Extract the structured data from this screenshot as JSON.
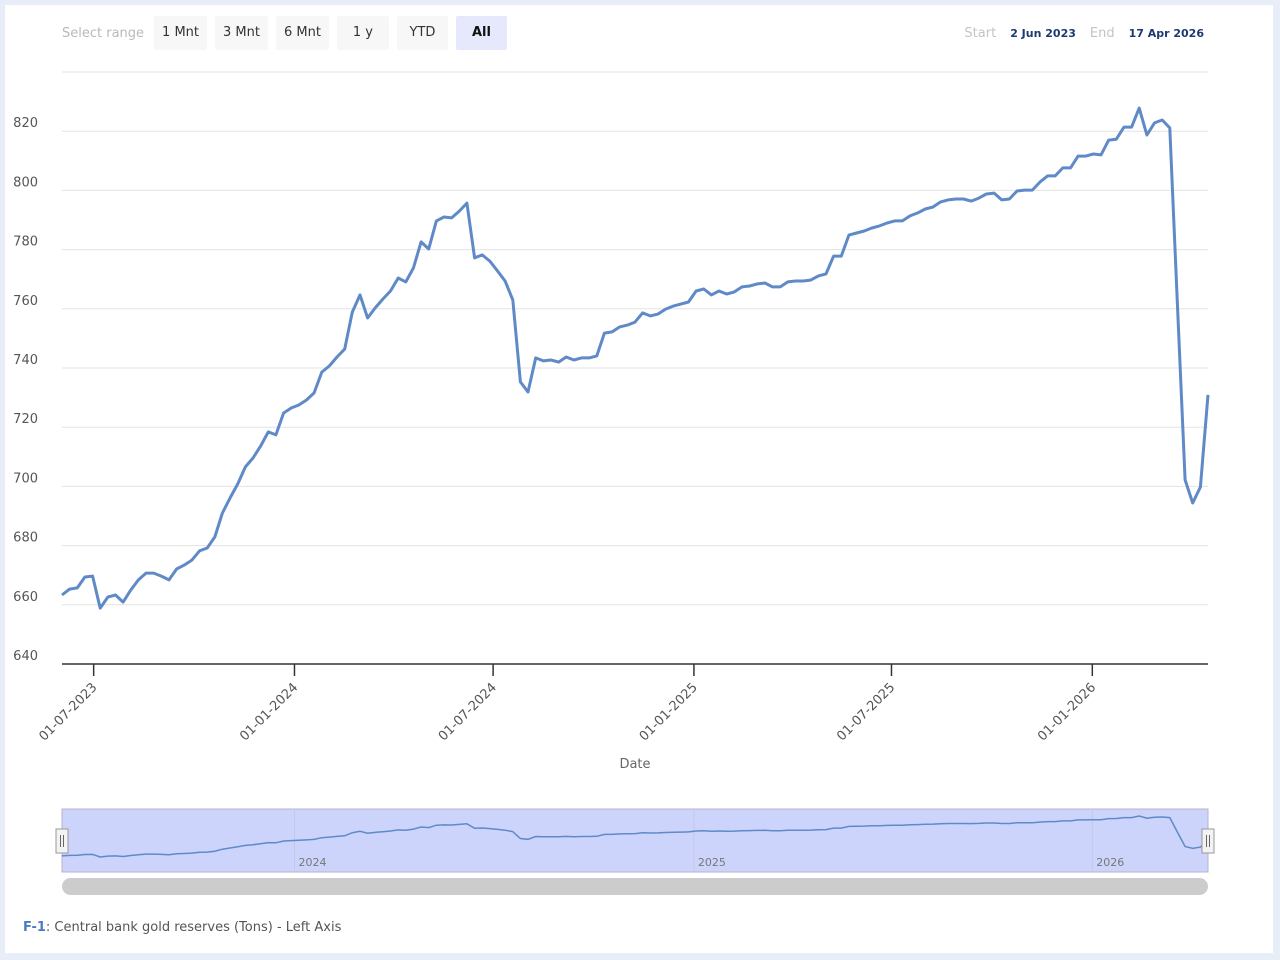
{
  "range_selector": {
    "label": "Select range",
    "buttons": [
      "1 Mnt",
      "3 Mnt",
      "6 Mnt",
      "1 y",
      "YTD",
      "All"
    ],
    "selected": "All"
  },
  "date_range": {
    "start_label": "Start",
    "start": "2 Jun 2023",
    "end_label": "End",
    "end": "17 Apr 2026"
  },
  "legend": {
    "id": "F-1",
    "text": ": Central bank gold reserves (Tons) - Left Axis"
  },
  "colors": {
    "line": "#5f8ac7",
    "navigator_fill": "#cdd4fb",
    "accent": "#1c3a70"
  },
  "chart_data": {
    "type": "line",
    "xlabel": "Date",
    "ylabel": "",
    "ylim": [
      640,
      840
    ],
    "yticks": [
      640,
      660,
      680,
      700,
      720,
      740,
      760,
      780,
      800,
      820
    ],
    "xticks": [
      "2023-07-01",
      "2024-01-01",
      "2024-07-01",
      "2025-01-01",
      "2025-07-01",
      "2026-01-01"
    ],
    "xtick_labels": [
      "01-07-2023",
      "01-01-2024",
      "01-07-2024",
      "01-01-2025",
      "01-07-2025",
      "01-01-2026"
    ],
    "xlim": [
      "2023-06-02",
      "2026-04-17"
    ],
    "grid": true,
    "navigator": {
      "ticks": [
        "2024-01-01",
        "2025-01-01",
        "2026-01-01"
      ],
      "labels": [
        "2024",
        "2025",
        "2026"
      ]
    },
    "series": [
      {
        "name": "Central bank gold reserves (Tons)",
        "x": [
          "2023-06-02",
          "2023-06-09",
          "2023-06-16",
          "2023-06-23",
          "2023-06-30",
          "2023-07-07",
          "2023-07-14",
          "2023-07-21",
          "2023-07-28",
          "2023-08-04",
          "2023-08-11",
          "2023-08-18",
          "2023-08-25",
          "2023-09-01",
          "2023-09-08",
          "2023-09-15",
          "2023-09-22",
          "2023-09-29",
          "2023-10-06",
          "2023-10-13",
          "2023-10-20",
          "2023-10-27",
          "2023-11-03",
          "2023-11-10",
          "2023-11-17",
          "2023-11-24",
          "2023-12-01",
          "2023-12-08",
          "2023-12-15",
          "2023-12-22",
          "2023-12-29",
          "2024-01-05",
          "2024-01-12",
          "2024-01-19",
          "2024-01-26",
          "2024-02-02",
          "2024-02-09",
          "2024-02-16",
          "2024-02-23",
          "2024-03-01",
          "2024-03-08",
          "2024-03-15",
          "2024-03-22",
          "2024-03-29",
          "2024-04-05",
          "2024-04-12",
          "2024-04-19",
          "2024-04-26",
          "2024-05-03",
          "2024-05-10",
          "2024-05-17",
          "2024-05-24",
          "2024-05-31",
          "2024-06-07",
          "2024-06-14",
          "2024-06-21",
          "2024-06-28",
          "2024-07-05",
          "2024-07-12",
          "2024-07-19",
          "2024-07-26",
          "2024-08-02",
          "2024-08-09",
          "2024-08-16",
          "2024-08-23",
          "2024-08-30",
          "2024-09-06",
          "2024-09-13",
          "2024-09-20",
          "2024-09-27",
          "2024-10-04",
          "2024-10-11",
          "2024-10-18",
          "2024-10-25",
          "2024-11-01",
          "2024-11-08",
          "2024-11-15",
          "2024-11-22",
          "2024-11-29",
          "2024-12-06",
          "2024-12-13",
          "2024-12-20",
          "2024-12-27",
          "2025-01-03",
          "2025-01-10",
          "2025-01-17",
          "2025-01-24",
          "2025-01-31",
          "2025-02-07",
          "2025-02-14",
          "2025-02-21",
          "2025-02-28",
          "2025-03-07",
          "2025-03-14",
          "2025-03-21",
          "2025-03-28",
          "2025-04-04",
          "2025-04-11",
          "2025-04-18",
          "2025-04-25",
          "2025-05-02",
          "2025-05-09",
          "2025-05-16",
          "2025-05-23",
          "2025-05-30",
          "2025-06-06",
          "2025-06-13",
          "2025-06-20",
          "2025-06-27",
          "2025-07-04",
          "2025-07-11",
          "2025-07-18",
          "2025-07-25",
          "2025-08-01",
          "2025-08-08",
          "2025-08-15",
          "2025-08-22",
          "2025-08-29",
          "2025-09-05",
          "2025-09-12",
          "2025-09-19",
          "2025-09-26",
          "2025-10-03",
          "2025-10-10",
          "2025-10-17",
          "2025-10-24",
          "2025-10-31",
          "2025-11-07",
          "2025-11-14",
          "2025-11-21",
          "2025-11-28",
          "2025-12-05",
          "2025-12-12",
          "2025-12-19",
          "2025-12-26",
          "2026-01-02",
          "2026-01-09",
          "2026-01-16",
          "2026-01-23",
          "2026-01-30",
          "2026-02-06",
          "2026-02-13",
          "2026-02-20",
          "2026-02-27",
          "2026-03-06",
          "2026-03-13",
          "2026-03-20",
          "2026-03-27",
          "2026-04-03",
          "2026-04-10",
          "2026-04-17"
        ],
        "y": [
          663.3,
          665.3,
          665.7,
          669.4,
          669.7,
          658.9,
          662.6,
          663.3,
          660.9,
          665.0,
          668.4,
          670.7,
          670.7,
          669.7,
          668.4,
          672.1,
          673.4,
          675.1,
          678.2,
          679.2,
          682.9,
          691.0,
          696.1,
          700.8,
          706.6,
          709.6,
          713.6,
          718.4,
          717.4,
          724.8,
          726.5,
          727.5,
          729.2,
          731.6,
          738.6,
          740.7,
          743.7,
          746.4,
          758.9,
          764.7,
          756.9,
          760.3,
          763.3,
          766.0,
          770.4,
          769.1,
          773.8,
          782.6,
          780.2,
          789.7,
          791.0,
          790.7,
          793.0,
          795.7,
          777.2,
          778.2,
          776.1,
          772.8,
          769.4,
          763.0,
          735.3,
          731.9,
          743.4,
          742.4,
          742.7,
          742.0,
          743.7,
          742.7,
          743.4,
          743.4,
          744.1,
          751.8,
          752.2,
          753.9,
          754.5,
          755.5,
          758.6,
          757.6,
          758.2,
          759.9,
          760.9,
          761.6,
          762.3,
          766.0,
          766.7,
          764.7,
          766.0,
          765.0,
          765.7,
          767.4,
          767.7,
          768.4,
          768.7,
          767.4,
          767.4,
          769.1,
          769.4,
          769.4,
          769.7,
          771.1,
          771.8,
          777.8,
          777.8,
          784.9,
          785.6,
          786.3,
          787.3,
          788.0,
          789.0,
          789.7,
          789.7,
          791.4,
          792.4,
          793.7,
          794.4,
          796.1,
          796.8,
          797.1,
          797.1,
          796.4,
          797.4,
          798.8,
          799.1,
          796.8,
          797.1,
          799.8,
          800.1,
          800.1,
          802.8,
          804.9,
          804.9,
          807.6,
          807.6,
          811.6,
          811.6,
          812.3,
          812.0,
          817.0,
          817.3,
          821.4,
          821.4,
          827.8,
          818.7,
          822.8,
          823.8,
          821.1,
          761.6,
          702.2,
          694.4,
          699.8,
          730.9
        ]
      }
    ]
  }
}
